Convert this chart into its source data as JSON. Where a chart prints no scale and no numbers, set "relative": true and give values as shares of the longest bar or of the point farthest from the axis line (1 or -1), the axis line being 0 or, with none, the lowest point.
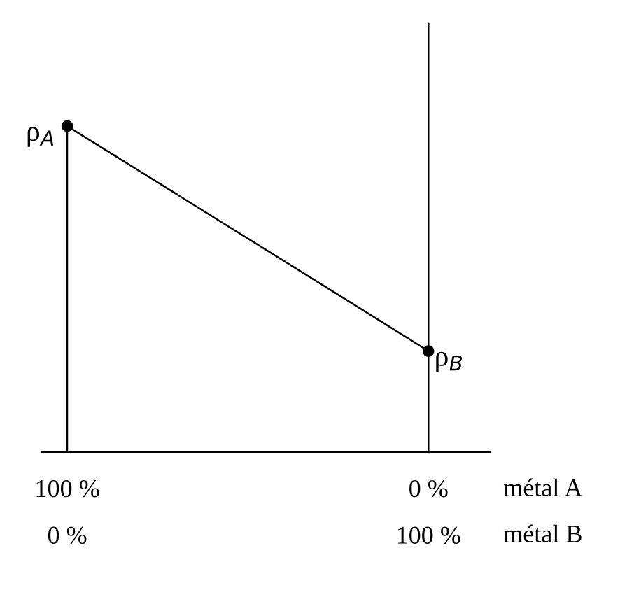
{
  "chart_data": {
    "type": "line",
    "relative": true,
    "x": [
      100,
      0
    ],
    "series": [
      {
        "color": "#000000",
        "values": [
          1,
          0.31
        ]
      }
    ],
    "xlim": [
      107,
      -17
    ],
    "xticks": [
      {
        "value": 100,
        "label": "100 %"
      },
      {
        "value": 0,
        "label": "0 %"
      }
    ],
    "xlabel": "métal A",
    "x2lim": [
      -7,
      117
    ],
    "x2ticks": [
      {
        "value": 0,
        "label": "0 %"
      },
      {
        "value": 100,
        "label": "100 %"
      }
    ],
    "x2label": "métal B",
    "ref_lines": [
      {
        "axis": "x",
        "value": 0,
        "label": null,
        "color": "#000000"
      }
    ],
    "annotations": [
      {
        "text": "ρ$_{A}$",
        "x": 100,
        "y": 1
      },
      {
        "text": "ρ$_{B}$",
        "x": 0,
        "y": 0.31
      }
    ],
    "marker": "circle",
    "line_style": "solid",
    "grid": false,
    "legend": false
  }
}
